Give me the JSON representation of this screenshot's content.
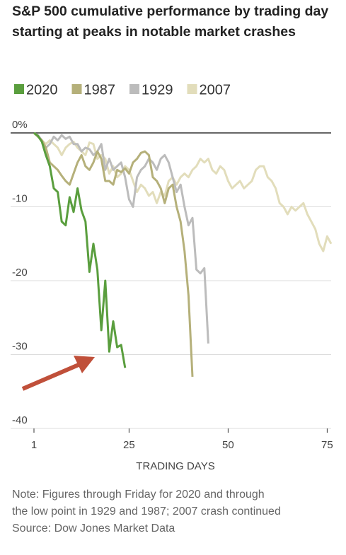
{
  "chart_data": {
    "type": "line",
    "title": "S&P 500 cumulative performance by trading day starting at peaks in notable market crashes",
    "xlabel": "TRADING DAYS",
    "notes": [
      "Note: Figures through Friday for 2020 and through",
      "the low point in 1929 and 1987; 2007 crash continued",
      "Source: Dow Jones Market Data"
    ],
    "x": [
      1,
      2,
      3,
      4,
      5,
      6,
      7,
      8,
      9,
      10,
      11,
      12,
      13,
      14,
      15,
      16,
      17,
      18,
      19,
      20,
      21,
      22,
      23,
      24,
      25,
      26,
      27,
      28,
      29,
      30,
      31,
      32,
      33,
      34,
      35,
      36,
      37,
      38,
      39,
      40,
      41,
      42,
      43,
      44,
      45,
      46,
      47,
      48,
      49,
      50,
      51,
      52,
      53,
      54,
      55,
      56,
      57,
      58,
      59,
      60,
      61,
      62,
      63,
      64,
      65,
      66,
      67,
      68,
      69,
      70,
      71,
      72,
      73,
      74,
      75,
      76
    ],
    "series": [
      {
        "name": "2020",
        "color": "#5a9e3e",
        "values": [
          0,
          -0.4,
          -1.2,
          -3,
          -4.5,
          -7.5,
          -8,
          -12,
          -12.5,
          -8.7,
          -10.7,
          -7.5,
          -10.5,
          -12,
          -18.8,
          -15,
          -18.5,
          -26.7,
          -20,
          -29.6,
          -25.5,
          -29,
          -28.7,
          -31.8,
          null,
          null,
          null,
          null,
          null,
          null,
          null,
          null,
          null,
          null,
          null,
          null,
          null,
          null,
          null,
          null,
          null,
          null,
          null,
          null,
          null,
          null,
          null,
          null,
          null,
          null,
          null,
          null,
          null,
          null,
          null,
          null,
          null,
          null,
          null,
          null,
          null,
          null,
          null,
          null,
          null,
          null,
          null,
          null,
          null,
          null,
          null,
          null,
          null,
          null,
          null,
          null
        ]
      },
      {
        "name": "1987",
        "color": "#b5b07a",
        "values": [
          0,
          -0.5,
          -1,
          -2,
          -4,
          -4.5,
          -5,
          -5.8,
          -6.5,
          -7,
          -5.5,
          -4,
          -3,
          -4.5,
          -5,
          -4,
          -2.5,
          -3.5,
          -6.5,
          -6.5,
          -7,
          -5,
          -5.3,
          -4.8,
          -5.5,
          -4,
          -3.5,
          -2.7,
          -2.5,
          -3,
          -6,
          -6.5,
          -7.5,
          -9.5,
          -7.5,
          -7,
          -10,
          -12,
          -16,
          -22,
          -33,
          null,
          null,
          null,
          null,
          null,
          null,
          null,
          null,
          null,
          null,
          null,
          null,
          null,
          null,
          null,
          null,
          null,
          null,
          null,
          null,
          null,
          null,
          null,
          null,
          null,
          null,
          null,
          null,
          null,
          null,
          null,
          null,
          null,
          null,
          null
        ]
      },
      {
        "name": "1929",
        "color": "#bcbcbc",
        "values": [
          0,
          -0.3,
          -1,
          -2,
          -1.5,
          -0.5,
          -1,
          -0.3,
          -0.8,
          -0.5,
          -1.5,
          -1.5,
          -2.5,
          -2,
          -2.2,
          -3,
          -2.5,
          -1.5,
          -5,
          -3.5,
          -5,
          -4.5,
          -4,
          -6,
          -9,
          -10,
          -6,
          -5,
          -4.5,
          -3.5,
          -4,
          -5,
          -3.5,
          -3,
          -4,
          -6,
          -8,
          -7,
          -10,
          -12.5,
          -11.5,
          -18.5,
          -19,
          -18.3,
          -28.5,
          null,
          null,
          null,
          null,
          null,
          null,
          null,
          null,
          null,
          null,
          null,
          null,
          null,
          null,
          null,
          null,
          null,
          null,
          null,
          null,
          null,
          null,
          null,
          null,
          null,
          null,
          null,
          null,
          null,
          null,
          null
        ]
      },
      {
        "name": "2007",
        "color": "#e2ddbb",
        "values": [
          0,
          -0.5,
          -1,
          -1.5,
          -1,
          -1.5,
          -2,
          -3,
          -2,
          -1.5,
          -1.2,
          -2,
          -2.5,
          -3,
          -1.3,
          -1.5,
          -3.5,
          -3,
          -3.5,
          -5.5,
          -4.5,
          -6,
          -5.5,
          -4.5,
          -5,
          -6.5,
          -8,
          -7,
          -7.5,
          -8.5,
          -8,
          -9.5,
          -8,
          -8.5,
          -6.5,
          -6,
          -7,
          -6,
          -5.5,
          -6,
          -5,
          -4.5,
          -3.5,
          -4,
          -3.5,
          -5,
          -5.5,
          -4.5,
          -5,
          -6.5,
          -7.5,
          -7,
          -6.5,
          -7.5,
          -7,
          -6.5,
          -5,
          -4.5,
          -4.5,
          -6,
          -6.5,
          -7.5,
          -9.5,
          -10,
          -11,
          -10,
          -10.5,
          -10,
          -9.5,
          -11,
          -12,
          -13,
          -15,
          -16,
          -14,
          -15
        ]
      }
    ],
    "xlim": [
      1,
      76
    ],
    "xticks": [
      1,
      25,
      50,
      75
    ],
    "ylim": [
      -40,
      1.2
    ],
    "yticks": [
      {
        "value": 0,
        "label": "0%"
      },
      -10,
      -20,
      -30,
      -40
    ],
    "grid": true
  }
}
